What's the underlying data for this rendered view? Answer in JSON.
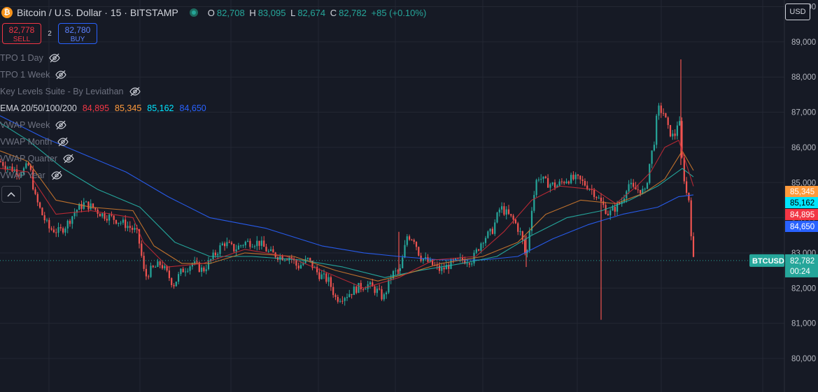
{
  "header": {
    "logo_char": "₿",
    "symbol": "Bitcoin / U.S. Dollar · 15 · BITSTAMP",
    "ohlc": {
      "o_label": "O",
      "o": "82,708",
      "h_label": "H",
      "h": "83,095",
      "l_label": "L",
      "l": "82,674",
      "c_label": "C",
      "c": "82,782",
      "change": "+85 (+0.10%)"
    }
  },
  "trade": {
    "sell_price": "82,778",
    "sell_label": "SELL",
    "spread": "2",
    "buy_price": "82,780",
    "buy_label": "BUY"
  },
  "indicators": [
    {
      "label": "TPO 1 Day",
      "hidden": true
    },
    {
      "label": "TPO 1 Week",
      "hidden": true
    },
    {
      "label": "Key Levels Suite - By Leviathan",
      "hidden": true
    },
    {
      "label": "EMA 20/50/100/200",
      "hidden": false,
      "values": [
        "84,895",
        "85,345",
        "85,162",
        "84,650"
      ]
    },
    {
      "label": "VWAP Week",
      "hidden": true
    },
    {
      "label": "VWAP Month",
      "hidden": true
    },
    {
      "label": "VWAP Quarter",
      "hidden": true
    },
    {
      "label": "VWAP Year",
      "hidden": true
    }
  ],
  "currency": "USD",
  "colors": {
    "background": "#161a25",
    "up": "#26a69a",
    "down": "#ef5350",
    "ema20": "#f23645",
    "ema50": "#ff9a3c",
    "ema100": "#00e5ff",
    "ema200": "#2962ff"
  },
  "chart_data": {
    "type": "candlestick",
    "y_ticks": [
      "90,000",
      "89,000",
      "88,000",
      "87,000",
      "86,000",
      "85,000",
      "84,000",
      "83,000",
      "82,000",
      "81,000",
      "80,000"
    ],
    "ylim": [
      80000,
      90500
    ],
    "current_price_label": "BTCUSD",
    "current_price": "82,782",
    "countdown": "00:24",
    "ema_labels": [
      {
        "name": "EMA 50",
        "value": "85,345",
        "color": "#ff9a3c"
      },
      {
        "name": "EMA 100",
        "value": "85,162",
        "color": "#00e5ff"
      },
      {
        "name": "EMA 20",
        "value": "84,895",
        "color": "#f23645"
      },
      {
        "name": "EMA 200",
        "value": "84,650",
        "color": "#2962ff"
      }
    ],
    "price_path": [
      [
        0,
        85600
      ],
      [
        15,
        85400
      ],
      [
        30,
        85300
      ],
      [
        42,
        85500
      ],
      [
        50,
        84600
      ],
      [
        60,
        84100
      ],
      [
        70,
        83700
      ],
      [
        85,
        83600
      ],
      [
        95,
        83800
      ],
      [
        108,
        84200
      ],
      [
        120,
        84400
      ],
      [
        132,
        84300
      ],
      [
        145,
        84100
      ],
      [
        160,
        84000
      ],
      [
        180,
        83800
      ],
      [
        195,
        83600
      ],
      [
        200,
        83200
      ],
      [
        207,
        82300
      ],
      [
        215,
        82500
      ],
      [
        230,
        82700
      ],
      [
        248,
        82100
      ],
      [
        260,
        82500
      ],
      [
        275,
        82700
      ],
      [
        290,
        82500
      ],
      [
        305,
        82900
      ],
      [
        320,
        83300
      ],
      [
        335,
        83100
      ],
      [
        350,
        83300
      ],
      [
        370,
        83300
      ],
      [
        385,
        83000
      ],
      [
        400,
        82900
      ],
      [
        415,
        82900
      ],
      [
        425,
        82600
      ],
      [
        440,
        82800
      ],
      [
        455,
        82400
      ],
      [
        470,
        82200
      ],
      [
        480,
        81700
      ],
      [
        495,
        81800
      ],
      [
        510,
        82000
      ],
      [
        525,
        82100
      ],
      [
        540,
        81900
      ],
      [
        548,
        81700
      ],
      [
        560,
        82400
      ],
      [
        572,
        82500
      ],
      [
        582,
        83500
      ],
      [
        592,
        83400
      ],
      [
        600,
        82900
      ],
      [
        615,
        82700
      ],
      [
        630,
        82500
      ],
      [
        645,
        82700
      ],
      [
        660,
        82800
      ],
      [
        675,
        82800
      ],
      [
        690,
        83400
      ],
      [
        703,
        83600
      ],
      [
        715,
        84300
      ],
      [
        725,
        84100
      ],
      [
        735,
        83900
      ],
      [
        745,
        83500
      ],
      [
        752,
        82800
      ],
      [
        760,
        84300
      ],
      [
        768,
        85200
      ],
      [
        780,
        85000
      ],
      [
        795,
        84900
      ],
      [
        810,
        85100
      ],
      [
        825,
        85100
      ],
      [
        840,
        84900
      ],
      [
        850,
        84700
      ],
      [
        860,
        84400
      ],
      [
        870,
        84100
      ],
      [
        880,
        84300
      ],
      [
        890,
        84500
      ],
      [
        897,
        85000
      ],
      [
        905,
        84800
      ],
      [
        915,
        84800
      ],
      [
        922,
        84700
      ],
      [
        928,
        85500
      ],
      [
        935,
        86200
      ],
      [
        940,
        87100
      ],
      [
        948,
        87000
      ],
      [
        955,
        86500
      ],
      [
        962,
        86300
      ],
      [
        966,
        86400
      ],
      [
        970,
        87000
      ],
      [
        975,
        85500
      ],
      [
        981,
        84700
      ],
      [
        985,
        84500
      ],
      [
        988,
        83500
      ],
      [
        991,
        82782
      ]
    ],
    "ema20": [
      [
        0,
        85400
      ],
      [
        40,
        85300
      ],
      [
        80,
        84100
      ],
      [
        130,
        84200
      ],
      [
        190,
        84000
      ],
      [
        205,
        83300
      ],
      [
        240,
        82600
      ],
      [
        290,
        82700
      ],
      [
        350,
        83100
      ],
      [
        410,
        82900
      ],
      [
        460,
        82500
      ],
      [
        520,
        82000
      ],
      [
        570,
        82300
      ],
      [
        620,
        82800
      ],
      [
        680,
        82900
      ],
      [
        720,
        83600
      ],
      [
        760,
        84500
      ],
      [
        800,
        84900
      ],
      [
        850,
        84800
      ],
      [
        880,
        84400
      ],
      [
        910,
        84900
      ],
      [
        930,
        85300
      ],
      [
        950,
        86000
      ],
      [
        970,
        86200
      ],
      [
        991,
        84895
      ]
    ],
    "ema50": [
      [
        0,
        85900
      ],
      [
        40,
        85600
      ],
      [
        80,
        84500
      ],
      [
        130,
        84300
      ],
      [
        190,
        84200
      ],
      [
        220,
        83200
      ],
      [
        260,
        82700
      ],
      [
        300,
        82700
      ],
      [
        350,
        83000
      ],
      [
        420,
        82900
      ],
      [
        480,
        82500
      ],
      [
        540,
        82200
      ],
      [
        580,
        82400
      ],
      [
        630,
        82700
      ],
      [
        690,
        82900
      ],
      [
        740,
        83300
      ],
      [
        780,
        84100
      ],
      [
        830,
        84500
      ],
      [
        880,
        84400
      ],
      [
        920,
        84700
      ],
      [
        950,
        85100
      ],
      [
        975,
        85900
      ],
      [
        991,
        85345
      ]
    ],
    "ema100": [
      [
        0,
        86700
      ],
      [
        40,
        86200
      ],
      [
        90,
        85400
      ],
      [
        140,
        84800
      ],
      [
        200,
        84300
      ],
      [
        250,
        83300
      ],
      [
        300,
        82900
      ],
      [
        360,
        82900
      ],
      [
        430,
        82800
      ],
      [
        490,
        82600
      ],
      [
        550,
        82300
      ],
      [
        600,
        82500
      ],
      [
        660,
        82700
      ],
      [
        710,
        82900
      ],
      [
        760,
        83500
      ],
      [
        810,
        84000
      ],
      [
        860,
        84200
      ],
      [
        900,
        84500
      ],
      [
        940,
        84900
      ],
      [
        975,
        85400
      ],
      [
        991,
        85162
      ]
    ],
    "ema200": [
      [
        0,
        86900
      ],
      [
        60,
        86300
      ],
      [
        120,
        85800
      ],
      [
        180,
        85300
      ],
      [
        240,
        84600
      ],
      [
        300,
        84000
      ],
      [
        380,
        83700
      ],
      [
        460,
        83200
      ],
      [
        520,
        83000
      ],
      [
        570,
        82900
      ],
      [
        630,
        82800
      ],
      [
        690,
        82800
      ],
      [
        740,
        82900
      ],
      [
        790,
        83400
      ],
      [
        840,
        83800
      ],
      [
        890,
        84100
      ],
      [
        940,
        84300
      ],
      [
        970,
        84600
      ],
      [
        991,
        84650
      ]
    ],
    "wicks": [
      {
        "x": 859,
        "high": 84500,
        "low": 81100
      },
      {
        "x": 973,
        "high": 88500,
        "low": 85500
      },
      {
        "x": 752,
        "high": 83500,
        "low": 82600
      },
      {
        "x": 570,
        "high": 83600,
        "low": 82400
      }
    ]
  }
}
